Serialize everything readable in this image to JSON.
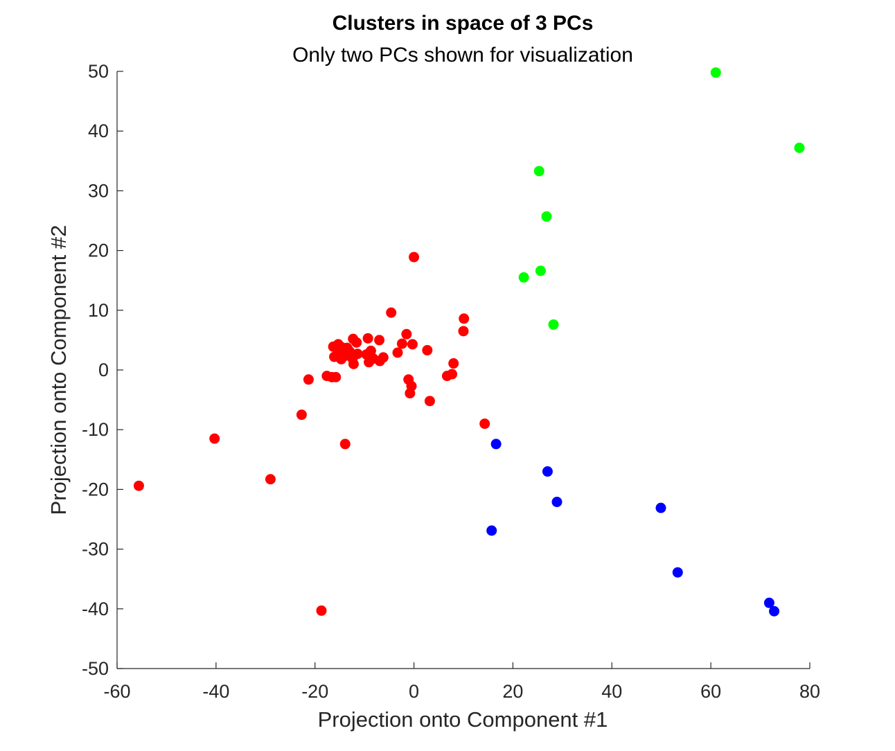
{
  "chart_data": {
    "type": "scatter",
    "title": "Clusters in space of 3 PCs",
    "subtitle": "Only two PCs shown for visualization",
    "xlabel": "Projection onto Component #1",
    "ylabel": "Projection onto Component #2",
    "xlim": [
      -60,
      80
    ],
    "ylim": [
      -50,
      50
    ],
    "xticks": [
      -60,
      -40,
      -20,
      0,
      20,
      40,
      60,
      80
    ],
    "yticks": [
      -50,
      -40,
      -30,
      -20,
      -10,
      0,
      10,
      20,
      30,
      40,
      50
    ],
    "grid": false,
    "series": [
      {
        "color": "#ff0000",
        "points": [
          [
            -55.6,
            -19.4
          ],
          [
            -40.3,
            -11.5
          ],
          [
            -29.0,
            -18.3
          ],
          [
            -22.7,
            -7.5
          ],
          [
            -21.3,
            -1.6
          ],
          [
            -18.7,
            -40.3
          ],
          [
            -17.6,
            -1.0
          ],
          [
            -16.6,
            -1.2
          ],
          [
            -15.8,
            -1.2
          ],
          [
            -13.9,
            -12.4
          ],
          [
            -16.3,
            3.9
          ],
          [
            -15.3,
            4.3
          ],
          [
            -14.6,
            3.8
          ],
          [
            -13.5,
            3.7
          ],
          [
            -12.3,
            5.2
          ],
          [
            -11.6,
            4.6
          ],
          [
            -16.1,
            2.2
          ],
          [
            -15.2,
            2.7
          ],
          [
            -14.7,
            1.8
          ],
          [
            -13.8,
            2.4
          ],
          [
            -13.0,
            3.1
          ],
          [
            -12.4,
            1.9
          ],
          [
            -12.2,
            1.0
          ],
          [
            -11.4,
            2.7
          ],
          [
            -9.3,
            5.3
          ],
          [
            -9.6,
            2.6
          ],
          [
            -8.7,
            3.2
          ],
          [
            -9.1,
            1.3
          ],
          [
            -8.2,
            1.9
          ],
          [
            -6.9,
            1.5
          ],
          [
            -7.0,
            5.0
          ],
          [
            -6.2,
            2.1
          ],
          [
            -4.6,
            9.6
          ],
          [
            -3.3,
            2.9
          ],
          [
            -2.4,
            4.4
          ],
          [
            -1.5,
            6.0
          ],
          [
            -0.3,
            4.3
          ],
          [
            0.0,
            18.9
          ],
          [
            2.7,
            3.3
          ],
          [
            -1.1,
            -1.6
          ],
          [
            -0.5,
            -2.7
          ],
          [
            -0.8,
            -3.9
          ],
          [
            3.2,
            -5.2
          ],
          [
            6.7,
            -1.0
          ],
          [
            7.7,
            -0.7
          ],
          [
            8.0,
            1.1
          ],
          [
            10.1,
            8.6
          ],
          [
            10.0,
            6.5
          ],
          [
            14.3,
            -9.0
          ]
        ]
      },
      {
        "color": "#00ff00",
        "points": [
          [
            61.0,
            49.8
          ],
          [
            77.9,
            37.2
          ],
          [
            25.3,
            33.3
          ],
          [
            26.8,
            25.7
          ],
          [
            25.6,
            16.6
          ],
          [
            22.2,
            15.5
          ],
          [
            28.2,
            7.6
          ]
        ]
      },
      {
        "color": "#0000ff",
        "points": [
          [
            16.6,
            -12.4
          ],
          [
            27.0,
            -17.0
          ],
          [
            28.9,
            -22.1
          ],
          [
            15.7,
            -26.9
          ],
          [
            49.9,
            -23.1
          ],
          [
            53.3,
            -33.9
          ],
          [
            71.8,
            -39.0
          ],
          [
            72.8,
            -40.4
          ]
        ]
      }
    ]
  }
}
